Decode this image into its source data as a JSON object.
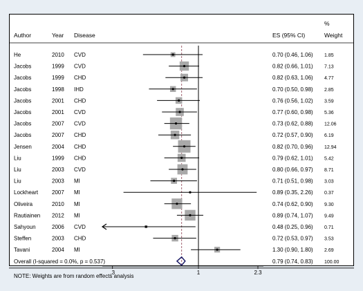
{
  "chart_data": {
    "type": "forest",
    "columns": {
      "author": "Author",
      "year": "Year",
      "disease": "Disease",
      "es": "ES (95% CI)",
      "weight_line1": "%",
      "weight_line2": "Weight"
    },
    "studies": [
      {
        "author": "He",
        "year": "2010",
        "disease": "CVD",
        "es": 0.7,
        "lo": 0.46,
        "hi": 1.06,
        "es_text": "0.70 (0.46, 1.06)",
        "weight": 1.85,
        "weight_text": "1.85"
      },
      {
        "author": "Jacobs",
        "year": "1999",
        "disease": "CVD",
        "es": 0.82,
        "lo": 0.66,
        "hi": 1.01,
        "es_text": "0.82 (0.66, 1.01)",
        "weight": 7.13,
        "weight_text": "7.13"
      },
      {
        "author": "Jacobs",
        "year": "1999",
        "disease": "CHD",
        "es": 0.82,
        "lo": 0.63,
        "hi": 1.06,
        "es_text": "0.82 (0.63, 1.06)",
        "weight": 4.77,
        "weight_text": "4.77"
      },
      {
        "author": "Jacobs",
        "year": "1998",
        "disease": "IHD",
        "es": 0.7,
        "lo": 0.5,
        "hi": 0.98,
        "es_text": "0.70 (0.50, 0.98)",
        "weight": 2.85,
        "weight_text": "2.85"
      },
      {
        "author": "Jacobs",
        "year": "2001",
        "disease": "CHD",
        "es": 0.76,
        "lo": 0.56,
        "hi": 1.02,
        "es_text": "0.76 (0.56, 1.02)",
        "weight": 3.59,
        "weight_text": "3.59"
      },
      {
        "author": "Jacobs",
        "year": "2001",
        "disease": "CVD",
        "es": 0.77,
        "lo": 0.6,
        "hi": 0.98,
        "es_text": "0.77 (0.60, 0.98)",
        "weight": 5.36,
        "weight_text": "5.36"
      },
      {
        "author": "Jacobs",
        "year": "2007",
        "disease": "CVD",
        "es": 0.73,
        "lo": 0.62,
        "hi": 0.88,
        "es_text": "0.73 (0.62, 0.88)",
        "weight": 12.06,
        "weight_text": "12.06"
      },
      {
        "author": "Jacobs",
        "year": "2007",
        "disease": "CHD",
        "es": 0.72,
        "lo": 0.57,
        "hi": 0.9,
        "es_text": "0.72 (0.57, 0.90)",
        "weight": 6.19,
        "weight_text": "6.19"
      },
      {
        "author": "Jensen",
        "year": "2004",
        "disease": "CHD",
        "es": 0.82,
        "lo": 0.7,
        "hi": 0.96,
        "es_text": "0.82 (0.70, 0.96)",
        "weight": 12.94,
        "weight_text": "12.94"
      },
      {
        "author": "Liu",
        "year": "1999",
        "disease": "CHD",
        "es": 0.79,
        "lo": 0.62,
        "hi": 1.01,
        "es_text": "0.79 (0.62, 1.01)",
        "weight": 5.42,
        "weight_text": "5.42"
      },
      {
        "author": "Liu",
        "year": "2003",
        "disease": "CVD",
        "es": 0.8,
        "lo": 0.66,
        "hi": 0.97,
        "es_text": "0.80 (0.66, 0.97)",
        "weight": 8.71,
        "weight_text": "8.71"
      },
      {
        "author": "Liu",
        "year": "2003",
        "disease": "MI",
        "es": 0.71,
        "lo": 0.51,
        "hi": 0.98,
        "es_text": "0.71 (0.51, 0.98)",
        "weight": 3.03,
        "weight_text": "3.03"
      },
      {
        "author": "Lockheart",
        "year": "2007",
        "disease": "MI",
        "es": 0.89,
        "lo": 0.35,
        "hi": 2.26,
        "es_text": "0.89 (0.35, 2.26)",
        "weight": 0.37,
        "weight_text": "0.37"
      },
      {
        "author": "Oliveira",
        "year": "2010",
        "disease": "MI",
        "es": 0.74,
        "lo": 0.62,
        "hi": 0.9,
        "es_text": "0.74 (0.62, 0.90)",
        "weight": 9.3,
        "weight_text": "9.30"
      },
      {
        "author": "Rautiainen",
        "year": "2012",
        "disease": "MI",
        "es": 0.89,
        "lo": 0.74,
        "hi": 1.07,
        "es_text": "0.89 (0.74, 1.07)",
        "weight": 9.49,
        "weight_text": "9.49"
      },
      {
        "author": "Sahyoun",
        "year": "2006",
        "disease": "CVD",
        "es": 0.48,
        "lo": 0.25,
        "hi": 0.96,
        "es_text": "0.48 (0.25, 0.96)",
        "weight": 0.71,
        "weight_text": "0.71"
      },
      {
        "author": "Steffen",
        "year": "2003",
        "disease": "CHD",
        "es": 0.72,
        "lo": 0.53,
        "hi": 0.97,
        "es_text": "0.72 (0.53, 0.97)",
        "weight": 3.53,
        "weight_text": "3.53"
      },
      {
        "author": "Tavani",
        "year": "2004",
        "disease": "MI",
        "es": 1.3,
        "lo": 0.9,
        "hi": 1.8,
        "es_text": "1.30 (0.90, 1.80)",
        "weight": 2.69,
        "weight_text": "2.69"
      }
    ],
    "overall": {
      "label": "Overall  (I-squared = 0.0%, p = 0.537)",
      "es": 0.79,
      "lo": 0.74,
      "hi": 0.83,
      "es_text": "0.79 (0.74, 0.83)",
      "weight_text": "100.00"
    },
    "note": "NOTE: Weights are from random effects analysis",
    "x_scale": "log",
    "x_ticks": [
      {
        "value": 0.3,
        "label": ".3"
      },
      {
        "value": 1,
        "label": "1"
      },
      {
        "value": 2.3,
        "label": "2.3"
      }
    ],
    "xlim": [
      0.18,
      2.3
    ],
    "null_line": 1,
    "colors": {
      "box": "#a9a9a9",
      "ci_line": "#000000",
      "overall_line": "#a0626f",
      "diamond": "#1a1a66",
      "background": "#e8eef4"
    }
  }
}
